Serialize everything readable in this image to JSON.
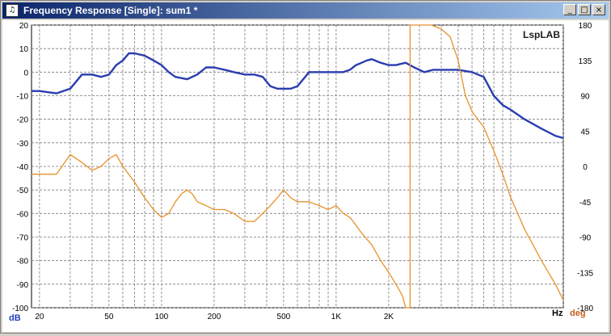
{
  "window": {
    "title": "Frequency Response [Single]: sum1 *",
    "icon_name": "app-icon",
    "buttons": [
      "_",
      "□",
      "×"
    ]
  },
  "colors": {
    "magnitude": "#2a3db0",
    "phase": "#e8912a",
    "grid": "#7a7a7a",
    "left_axis_label": "#2040c0",
    "right_axis_label": "#c0601a",
    "brand": "#1a1a1a"
  },
  "chart_data": {
    "type": "line",
    "title": "",
    "brand_label": "LspLAB",
    "x_scale": "log",
    "xlim": [
      18,
      20000
    ],
    "x_tick_labels": [
      {
        "value": 20,
        "label": "20"
      },
      {
        "value": 50,
        "label": "50"
      },
      {
        "value": 100,
        "label": "100"
      },
      {
        "value": 200,
        "label": "200"
      },
      {
        "value": 500,
        "label": "500"
      },
      {
        "value": 1000,
        "label": "1K"
      },
      {
        "value": 2000,
        "label": "2K"
      }
    ],
    "xlabel": "Hz",
    "y_left": {
      "label": "dB",
      "lim": [
        -100,
        20
      ],
      "ticks": [
        "20",
        "10",
        "0",
        "-10",
        "-20",
        "-30",
        "-40",
        "-50",
        "-60",
        "-70",
        "-80",
        "-90",
        "-100"
      ]
    },
    "y_right": {
      "label": "deg",
      "lim": [
        -180,
        180
      ],
      "ticks": [
        "180",
        "135",
        "90",
        "45",
        "0",
        "-45",
        "-90",
        "-135",
        "-180"
      ]
    },
    "grid": true,
    "series": [
      {
        "axis": "left",
        "x": [
          18,
          20,
          25,
          30,
          35,
          40,
          45,
          50,
          55,
          60,
          65,
          70,
          80,
          90,
          100,
          110,
          120,
          140,
          160,
          180,
          200,
          230,
          260,
          300,
          340,
          380,
          420,
          460,
          500,
          550,
          600,
          700,
          800,
          900,
          1000,
          1100,
          1200,
          1300,
          1400,
          1500,
          1600,
          1800,
          2000,
          2200,
          2500,
          2800,
          3200,
          3600,
          4000,
          5000,
          6000,
          7000,
          8000,
          9000,
          10000,
          12000,
          15000,
          18000,
          20000
        ],
        "values": [
          -8,
          -8,
          -9,
          -7,
          -1,
          -1,
          -2,
          -1,
          3,
          5,
          8,
          8,
          7,
          5,
          3,
          0,
          -2,
          -3,
          -1,
          2,
          2,
          1,
          0,
          -1,
          -1,
          -2,
          -6,
          -7,
          -7,
          -7,
          -6,
          0,
          0,
          0,
          0,
          0,
          1,
          3,
          4,
          5,
          5.5,
          4,
          3,
          3,
          4,
          2,
          0,
          1,
          1,
          1,
          0,
          -2,
          -10,
          -14,
          -16,
          -20,
          -24,
          -27,
          -28
        ]
      },
      {
        "axis": "right",
        "x": [
          18,
          20,
          25,
          30,
          35,
          40,
          45,
          50,
          55,
          60,
          70,
          80,
          90,
          100,
          110,
          120,
          130,
          140,
          150,
          160,
          180,
          200,
          230,
          260,
          300,
          340,
          380,
          420,
          460,
          500,
          550,
          600,
          700,
          800,
          900,
          1000,
          1100,
          1200,
          1300,
          1400,
          1600,
          1800,
          2000,
          2200,
          2400,
          2500,
          2600,
          2650,
          2650,
          2700,
          3000,
          3500,
          4000,
          4500,
          5000,
          5500,
          6000,
          7000,
          8000,
          9000,
          10000,
          12000,
          15000,
          18000,
          20000
        ],
        "values": [
          -10,
          -10,
          -10,
          15,
          5,
          -5,
          0,
          10,
          15,
          0,
          -20,
          -40,
          -55,
          -65,
          -60,
          -45,
          -35,
          -30,
          -35,
          -45,
          -50,
          -55,
          -55,
          -60,
          -70,
          -70,
          -60,
          -50,
          -40,
          -30,
          -40,
          -45,
          -45,
          -50,
          -55,
          -50,
          -60,
          -65,
          -75,
          -85,
          -100,
          -120,
          -135,
          -150,
          -165,
          -180,
          -180,
          -180,
          180,
          180,
          180,
          180,
          175,
          165,
          135,
          90,
          70,
          50,
          20,
          -10,
          -40,
          -80,
          -120,
          -150,
          -170
        ]
      }
    ]
  }
}
